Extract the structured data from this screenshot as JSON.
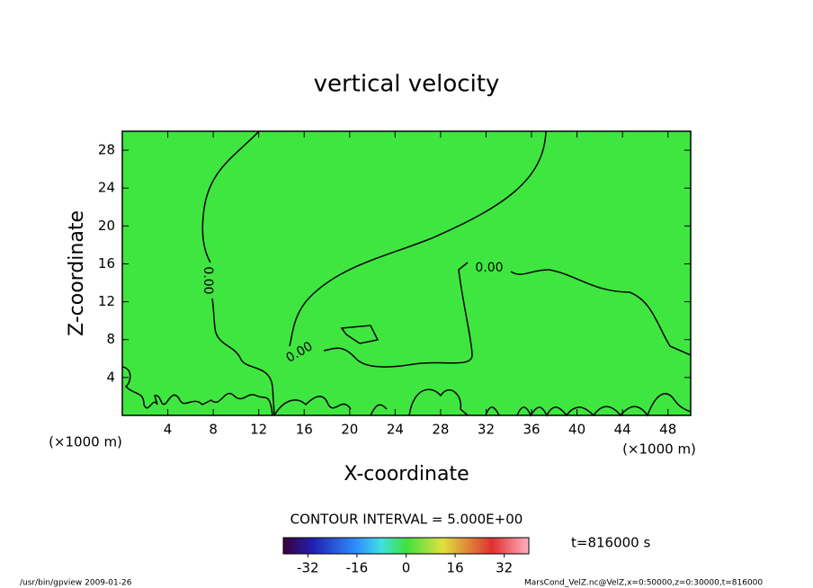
{
  "chart_data": {
    "type": "contour",
    "title": "vertical velocity",
    "xlabel": "X-coordinate",
    "ylabel": "Z-coordinate",
    "x_unit": "(×1000 m)",
    "y_unit": "(×1000 m)",
    "xlim": [
      0,
      50
    ],
    "ylim": [
      0,
      30
    ],
    "xticks": [
      4,
      8,
      12,
      16,
      20,
      24,
      28,
      32,
      36,
      40,
      44,
      48
    ],
    "yticks": [
      4,
      8,
      12,
      16,
      20,
      24,
      28
    ],
    "fill_color": "#3fe63f",
    "contour_labels": [
      "0.00",
      "0.00",
      "0.00"
    ],
    "contour_interval": "CONTOUR INTERVAL = 5.000E+00",
    "colorbar": {
      "lim": [
        -40,
        40
      ],
      "ticks": [
        -32,
        -16,
        0,
        16,
        32
      ]
    },
    "time_label": "t=816000 s",
    "footer_left": "/usr/bin/gpview  2009-01-26",
    "footer_right": "MarsCond_VelZ.nc@VelZ,x=0:50000,z=0:30000,t=816000"
  }
}
